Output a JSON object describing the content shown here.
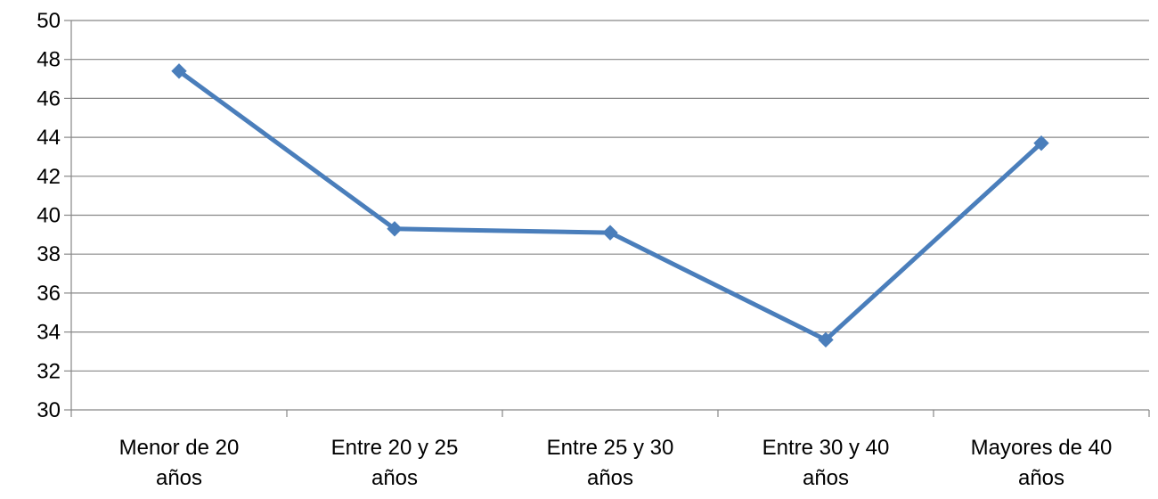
{
  "chart_data": {
    "type": "line",
    "title": "",
    "xlabel": "",
    "ylabel": "",
    "categories": [
      [
        "Menor de 20",
        "años"
      ],
      [
        "Entre 20 y 25",
        "años"
      ],
      [
        "Entre 25 y 30",
        "años"
      ],
      [
        "Entre 30 y 40",
        "años"
      ],
      [
        "Mayores de 40",
        "años"
      ]
    ],
    "series": [
      {
        "values": [
          47.4,
          39.3,
          39.1,
          33.6,
          43.7
        ],
        "color": "#4a7ebb",
        "marker": "diamond"
      }
    ],
    "ylim": [
      30,
      50
    ],
    "yticks": [
      30,
      32,
      34,
      36,
      38,
      40,
      42,
      44,
      46,
      48,
      50
    ],
    "grid": true,
    "legend": "none"
  }
}
